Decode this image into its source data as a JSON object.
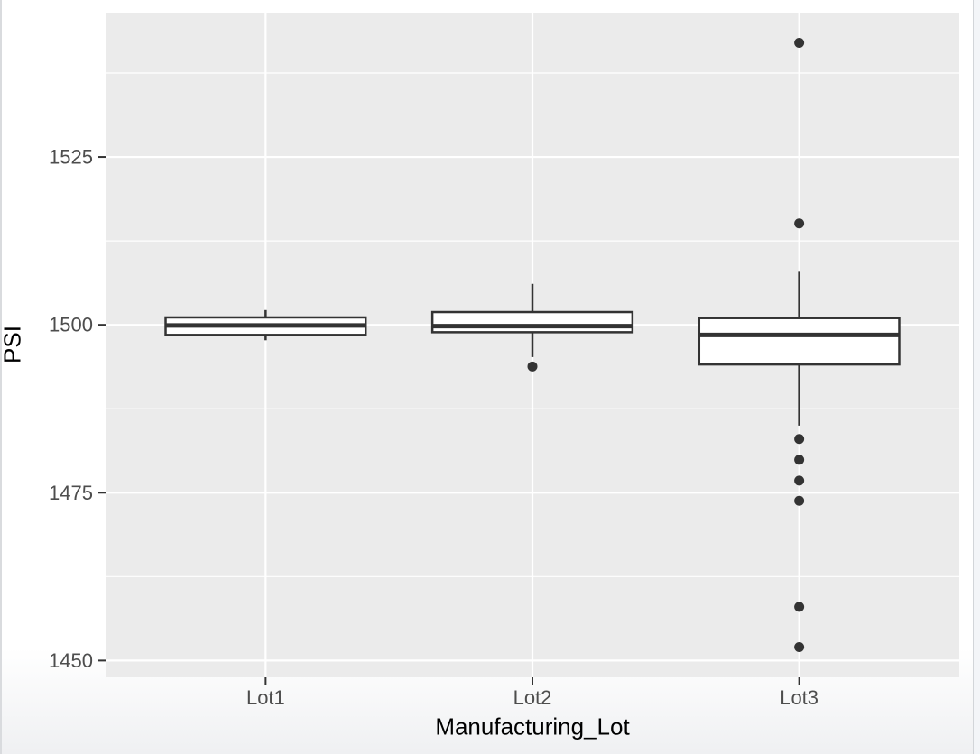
{
  "window": {
    "scrollbar_present": true,
    "scrollbar_track_color": "#f3f5f8",
    "scrollbar_border_color": "#d2d5d9",
    "left_border_color": "#d9dbde"
  },
  "chart_data": {
    "type": "boxplot",
    "title": "",
    "xlabel": "Manufacturing_Lot",
    "ylabel": "PSI",
    "categories": [
      "Lot1",
      "Lot2",
      "Lot3"
    ],
    "ylim": [
      1447.5,
      1546.5
    ],
    "yticks_major": [
      1450,
      1475,
      1500,
      1525
    ],
    "yticks_minor": [
      1462.5,
      1487.5,
      1512.5,
      1537.5
    ],
    "ytick_labels": [
      "1450",
      "1475",
      "1500",
      "1525"
    ],
    "grid": "on",
    "legend": "none",
    "theme": "ggplot-gray",
    "panel_bg": "#ebebeb",
    "grid_major_color": "#ffffff",
    "grid_minor_color": "#ffffff",
    "box_stroke": "#333333",
    "box_fill": "#ffffff",
    "outlier_color": "#333333",
    "tick_mark_color": "#333333",
    "tick_label_color": "#4d4d4d",
    "axis_title_color": "#000000",
    "series": [
      {
        "category": "Lot1",
        "lower_whisker": 1497.7,
        "q1": 1498.5,
        "median": 1499.9,
        "q3": 1501.1,
        "upper_whisker": 1502.2,
        "outliers": []
      },
      {
        "category": "Lot2",
        "lower_whisker": 1495.2,
        "q1": 1498.9,
        "median": 1499.8,
        "q3": 1501.9,
        "upper_whisker": 1506.1,
        "outliers": [
          1493.8
        ]
      },
      {
        "category": "Lot3",
        "lower_whisker": 1485.0,
        "q1": 1494.1,
        "median": 1498.5,
        "q3": 1501.0,
        "upper_whisker": 1507.9,
        "outliers": [
          1542.0,
          1515.1,
          1483.0,
          1479.9,
          1476.8,
          1473.8,
          1458.0,
          1452.0
        ]
      }
    ]
  }
}
